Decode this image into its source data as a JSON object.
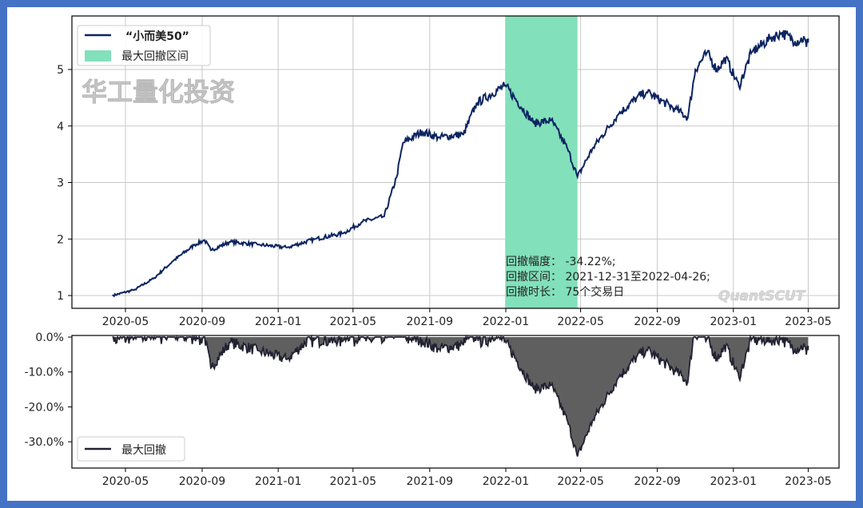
{
  "watermark_cn": "华工量化投资",
  "watermark_en": "QuantSCUT",
  "chart_data": [
    {
      "type": "line",
      "title": "",
      "legend": [
        "“小而美50”",
        "最大回撤区间"
      ],
      "legend_position": "top-left",
      "series_name": "“小而美50”",
      "color": "#0c2461",
      "highlight_color": "#82e0bb",
      "highlight_range": [
        "2021-12-31",
        "2022-04-26"
      ],
      "x_ticks": [
        "2020-05",
        "2020-09",
        "2021-01",
        "2021-05",
        "2021-09",
        "2022-01",
        "2022-05",
        "2022-09",
        "2023-01",
        "2023-05"
      ],
      "y_ticks": [
        1,
        2,
        3,
        4,
        5
      ],
      "ylim": [
        0.8,
        5.9
      ],
      "grid": true,
      "points": [
        [
          "2020-04-10",
          1.0
        ],
        [
          "2020-05-15",
          1.1
        ],
        [
          "2020-06-15",
          1.3
        ],
        [
          "2020-07-15",
          1.6
        ],
        [
          "2020-08-20",
          1.9
        ],
        [
          "2020-09-05",
          1.98
        ],
        [
          "2020-09-15",
          1.8
        ],
        [
          "2020-10-15",
          1.95
        ],
        [
          "2020-12-01",
          1.9
        ],
        [
          "2021-01-15",
          1.85
        ],
        [
          "2021-03-01",
          2.0
        ],
        [
          "2021-04-15",
          2.1
        ],
        [
          "2021-05-15",
          2.3
        ],
        [
          "2021-06-20",
          2.4
        ],
        [
          "2021-07-10",
          3.1
        ],
        [
          "2021-07-20",
          3.7
        ],
        [
          "2021-08-20",
          3.9
        ],
        [
          "2021-09-15",
          3.8
        ],
        [
          "2021-10-25",
          3.85
        ],
        [
          "2021-11-15",
          4.4
        ],
        [
          "2021-12-31",
          4.72
        ],
        [
          "2022-02-15",
          4.05
        ],
        [
          "2022-03-15",
          4.1
        ],
        [
          "2022-04-10",
          3.6
        ],
        [
          "2022-04-26",
          3.1
        ],
        [
          "2022-05-20",
          3.6
        ],
        [
          "2022-06-30",
          4.2
        ],
        [
          "2022-07-30",
          4.5
        ],
        [
          "2022-08-15",
          4.6
        ],
        [
          "2022-09-30",
          4.3
        ],
        [
          "2022-10-20",
          4.15
        ],
        [
          "2022-11-01",
          5.0
        ],
        [
          "2022-11-20",
          5.3
        ],
        [
          "2022-12-05",
          5.0
        ],
        [
          "2022-12-20",
          5.2
        ],
        [
          "2023-01-10",
          4.7
        ],
        [
          "2023-01-30",
          5.3
        ],
        [
          "2023-03-01",
          5.55
        ],
        [
          "2023-03-20",
          5.65
        ],
        [
          "2023-04-10",
          5.5
        ],
        [
          "2023-04-25",
          5.55
        ],
        [
          "2023-04-28",
          5.4
        ],
        [
          "2023-05-01",
          5.55
        ]
      ],
      "annotation": [
        "回撤幅度： -34.22%;",
        "回撤区间： 2021-12-31至2022-04-26;",
        "回撤时长： 75个交易日"
      ]
    },
    {
      "type": "area",
      "series_name": "最大回撤",
      "legend": [
        "最大回撤"
      ],
      "legend_position": "bottom-left",
      "color": "#5f5f5f",
      "line_color": "#222233",
      "x_ticks": [
        "2020-05",
        "2020-09",
        "2021-01",
        "2021-05",
        "2021-09",
        "2022-01",
        "2022-05",
        "2022-09",
        "2023-01",
        "2023-05"
      ],
      "y_ticks": [
        "0.0%",
        "-10.0%",
        "-20.0%",
        "-30.0%"
      ],
      "y_tick_values": [
        0,
        -10,
        -20,
        -30
      ],
      "ylim": [
        -37,
        0.5
      ],
      "min_drawdown": -34.22
    }
  ]
}
